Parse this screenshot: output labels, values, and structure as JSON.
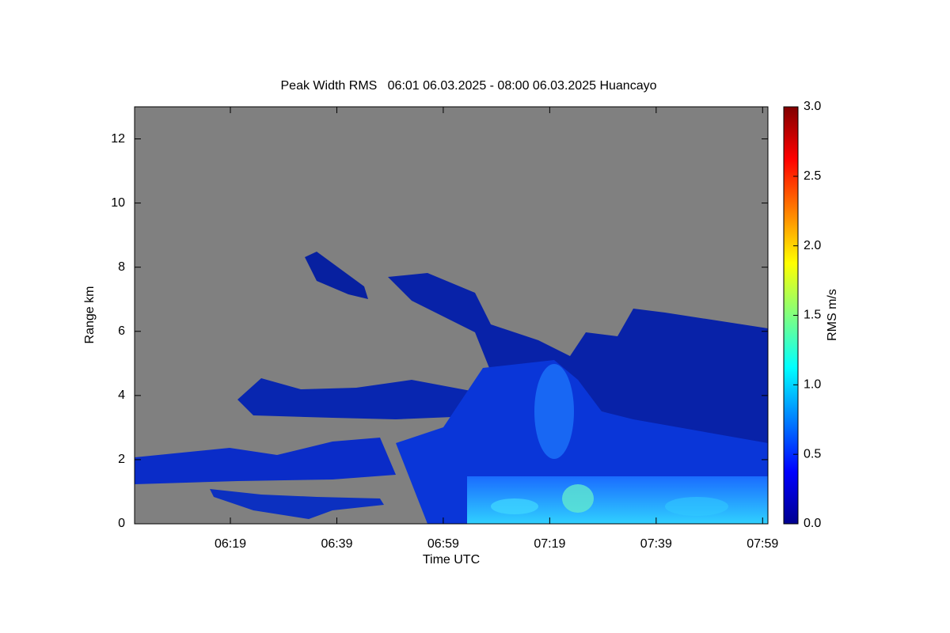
{
  "chart_data": {
    "type": "heatmap",
    "title": "Peak Width RMS   06:01 06.03.2025 - 08:00 06.03.2025 Huancayo",
    "xlabel": "Time UTC",
    "ylabel": "Range km",
    "colorbar_label": "RMS m/s",
    "xlim": [
      361,
      480
    ],
    "xticks": [
      {
        "value": 379,
        "label": "06:19"
      },
      {
        "value": 399,
        "label": "06:39"
      },
      {
        "value": 419,
        "label": "06:59"
      },
      {
        "value": 439,
        "label": "07:19"
      },
      {
        "value": 459,
        "label": "07:39"
      },
      {
        "value": 479,
        "label": "07:59"
      }
    ],
    "ylim": [
      0,
      13
    ],
    "yticks": [
      0,
      2,
      4,
      6,
      8,
      10,
      12
    ],
    "clim": [
      0,
      3
    ],
    "cticks": [
      {
        "value": 0,
        "label": "0.0"
      },
      {
        "value": 0.5,
        "label": "0.5"
      },
      {
        "value": 1,
        "label": "1.0"
      },
      {
        "value": 1.5,
        "label": "1.5"
      },
      {
        "value": 2,
        "label": "2.0"
      },
      {
        "value": 2.5,
        "label": "2.5"
      },
      {
        "value": 3,
        "label": "3.0"
      }
    ],
    "colormap": "jet",
    "background": "#808080"
  }
}
